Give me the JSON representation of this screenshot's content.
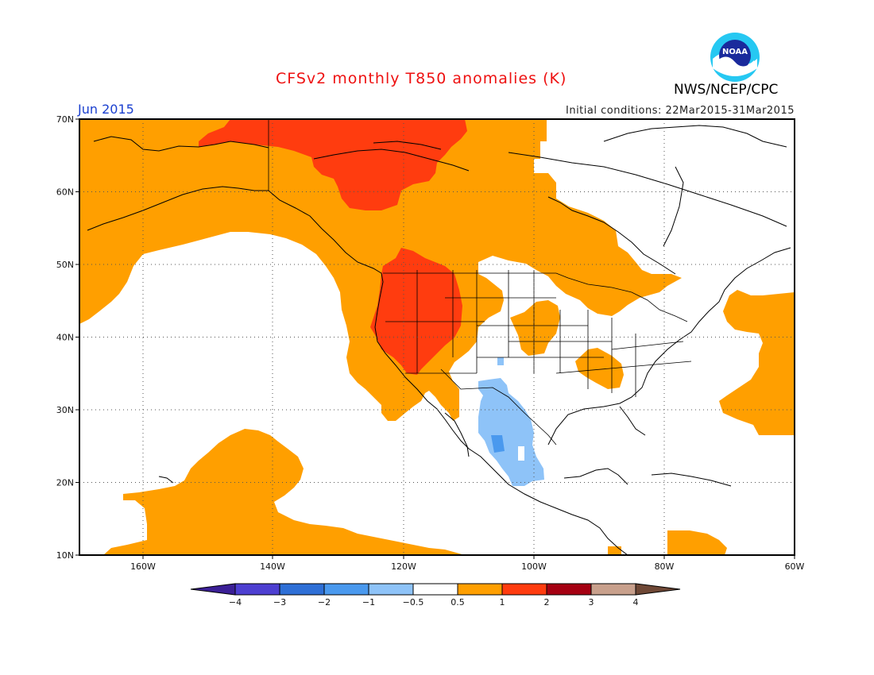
{
  "title": "CFSv2 monthly T850 anomalies (K)",
  "month_label": "Jun 2015",
  "initial_conditions": "Initial conditions: 22Mar2015-31Mar2015",
  "agency": "NWS/NCEP/CPC",
  "logo_text": "NOAA",
  "map": {
    "lon_range": [
      -172,
      -60
    ],
    "lat_range": [
      10,
      70
    ],
    "lat_labels": [
      "70N",
      "60N",
      "50N",
      "40N",
      "30N",
      "20N",
      "10N"
    ],
    "lon_labels": [
      "160W",
      "140W",
      "120W",
      "100W",
      "80W",
      "60W"
    ],
    "grid": "dotted"
  },
  "colorbar": {
    "labels": [
      "−4",
      "−3",
      "−2",
      "−1",
      "−0.5",
      "0.5",
      "1",
      "2",
      "3",
      "4"
    ],
    "colors": [
      "#3b1f96",
      "#4d3fd1",
      "#2e6fd6",
      "#4a99ee",
      "#8ec3f8",
      "#ffffff",
      "#ff9f00",
      "#ff3c0f",
      "#a50012",
      "#c8a08c",
      "#6f4836"
    ]
  },
  "colors": {
    "warm": "#ff9f00",
    "hot": "#ff3c0f",
    "cool": "#8ec3f8",
    "cooler": "#4a99ee"
  }
}
